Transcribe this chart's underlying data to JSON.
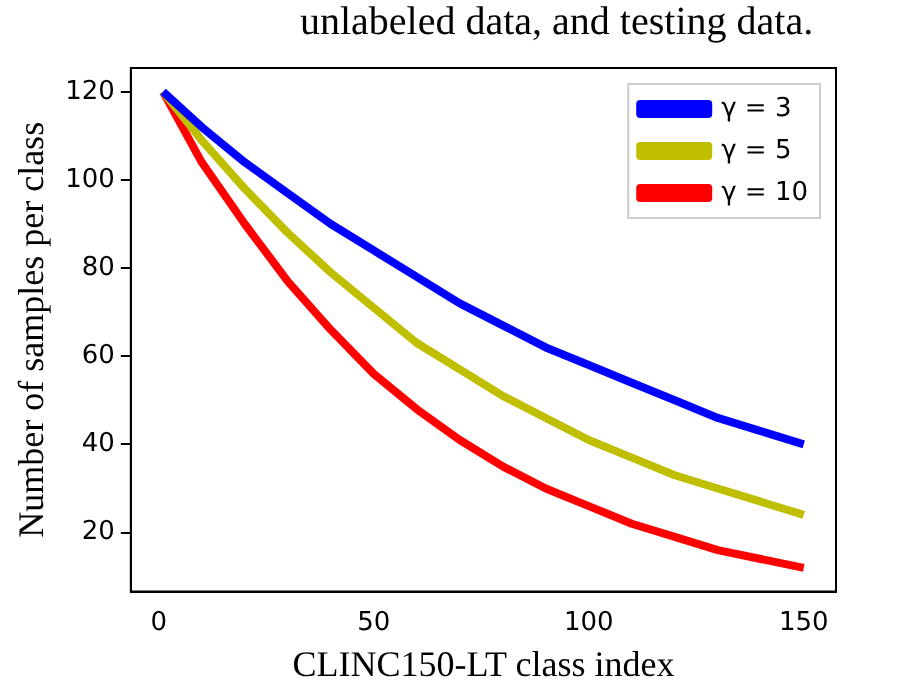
{
  "chart_data": {
    "type": "line",
    "xlabel": "CLINC150-LT class index",
    "ylabel": "Number of samples per class",
    "annotations": [
      "unlabeled data, and testing data."
    ],
    "x": [
      1,
      10,
      20,
      30,
      40,
      50,
      60,
      70,
      80,
      90,
      100,
      110,
      120,
      130,
      140,
      150
    ],
    "series": [
      {
        "name": "γ = 3",
        "color": "#0000ff",
        "values": [
          120,
          112,
          104,
          97,
          90,
          84,
          78,
          72,
          67,
          62,
          58,
          54,
          50,
          46,
          43,
          40
        ]
      },
      {
        "name": "γ = 5",
        "color": "#bfbf00",
        "values": [
          120,
          109,
          98,
          88,
          79,
          71,
          63,
          57,
          51,
          46,
          41,
          37,
          33,
          30,
          27,
          24
        ]
      },
      {
        "name": "γ = 10",
        "color": "#ff0000",
        "values": [
          120,
          104,
          90,
          77,
          66,
          56,
          48,
          41,
          35,
          30,
          26,
          22,
          19,
          16,
          14,
          12
        ]
      }
    ],
    "xlim": [
      -6.5,
      157.5
    ],
    "xticks": [
      0,
      50,
      100,
      150
    ],
    "ylim": [
      6.6,
      125.4
    ],
    "yticks": [
      20,
      40,
      60,
      80,
      100,
      120
    ],
    "grid": false,
    "legend": "top right",
    "marker": "none",
    "line_style": "solid"
  }
}
